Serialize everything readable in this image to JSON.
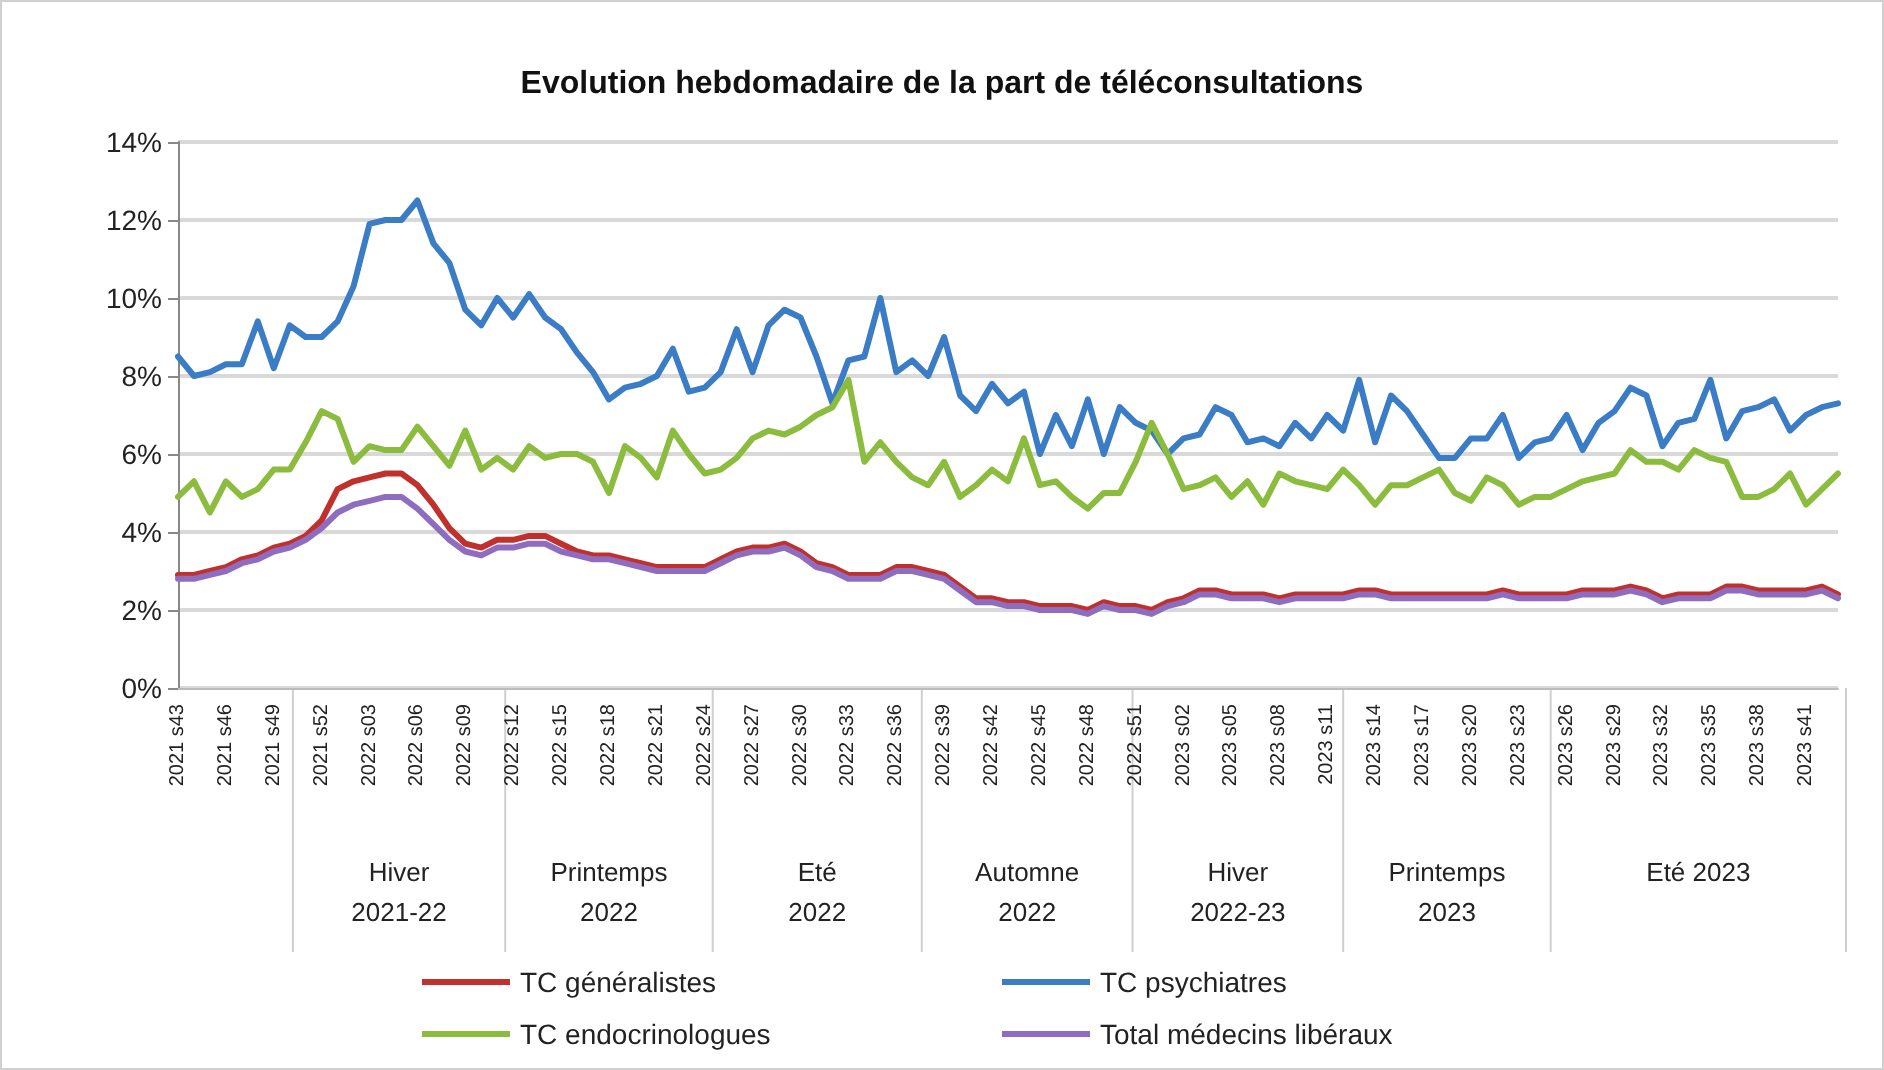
{
  "chart_data": {
    "type": "line",
    "title": "Evolution hebdomadaire de la part de téléconsultations",
    "categories": [
      "2021 s43",
      null,
      null,
      "2021 s46",
      null,
      null,
      "2021 s49",
      null,
      null,
      "2021 s52",
      null,
      null,
      "2022 s03",
      null,
      null,
      "2022 s06",
      null,
      null,
      "2022 s09",
      null,
      null,
      "2022 s12",
      null,
      null,
      "2022 s15",
      null,
      null,
      "2022 s18",
      null,
      null,
      "2022 s21",
      null,
      null,
      "2022 s24",
      null,
      null,
      "2022 s27",
      null,
      null,
      "2022 s30",
      null,
      null,
      "2022 s33",
      null,
      null,
      "2022 s36",
      null,
      null,
      "2022 s39",
      null,
      null,
      "2022 s42",
      null,
      null,
      "2022 s45",
      null,
      null,
      "2022 s48",
      null,
      null,
      "2022 s51",
      null,
      null,
      "2023 s02",
      null,
      null,
      "2023 s05",
      null,
      null,
      "2023 s08",
      null,
      null,
      "2023 s11",
      null,
      null,
      "2023 s14",
      null,
      null,
      "2023 s17",
      null,
      null,
      "2023 s20",
      null,
      null,
      "2023 s23",
      null,
      null,
      "2023 s26",
      null,
      null,
      "2023 s29",
      null,
      null,
      "2023 s32",
      null,
      null,
      "2023 s35",
      null,
      null,
      "2023 s38",
      null,
      null,
      "2023 s41",
      null,
      null
    ],
    "series": [
      {
        "name": "TC généralistes",
        "color": "#c0302c",
        "values": [
          2.9,
          2.9,
          3.0,
          3.1,
          3.3,
          3.4,
          3.6,
          3.7,
          3.9,
          4.3,
          5.1,
          5.3,
          5.4,
          5.5,
          5.5,
          5.2,
          4.7,
          4.1,
          3.7,
          3.6,
          3.8,
          3.8,
          3.9,
          3.9,
          3.7,
          3.5,
          3.4,
          3.4,
          3.3,
          3.2,
          3.1,
          3.1,
          3.1,
          3.1,
          3.3,
          3.5,
          3.6,
          3.6,
          3.7,
          3.5,
          3.2,
          3.1,
          2.9,
          2.9,
          2.9,
          3.1,
          3.1,
          3.0,
          2.9,
          2.6,
          2.3,
          2.3,
          2.2,
          2.2,
          2.1,
          2.1,
          2.1,
          2.0,
          2.2,
          2.1,
          2.1,
          2.0,
          2.2,
          2.3,
          2.5,
          2.5,
          2.4,
          2.4,
          2.4,
          2.3,
          2.4,
          2.4,
          2.4,
          2.4,
          2.5,
          2.5,
          2.4,
          2.4,
          2.4,
          2.4,
          2.4,
          2.4,
          2.4,
          2.5,
          2.4,
          2.4,
          2.4,
          2.4,
          2.5,
          2.5,
          2.5,
          2.6,
          2.5,
          2.3,
          2.4,
          2.4,
          2.4,
          2.6,
          2.6,
          2.5,
          2.5,
          2.5,
          2.5,
          2.6,
          2.4
        ]
      },
      {
        "name": "TC psychiatres",
        "color": "#3a7cc6",
        "values": [
          8.5,
          8.0,
          8.1,
          8.3,
          8.3,
          9.4,
          8.2,
          9.3,
          9.0,
          9.0,
          9.4,
          10.3,
          11.9,
          12.0,
          12.0,
          12.5,
          11.4,
          10.9,
          9.7,
          9.3,
          10.0,
          9.5,
          10.1,
          9.5,
          9.2,
          8.6,
          8.1,
          7.4,
          7.7,
          7.8,
          8.0,
          8.7,
          7.6,
          7.7,
          8.1,
          9.2,
          8.1,
          9.3,
          9.7,
          9.5,
          8.5,
          7.3,
          8.4,
          8.5,
          10.0,
          8.1,
          8.4,
          8.0,
          9.0,
          7.5,
          7.1,
          7.8,
          7.3,
          7.6,
          6.0,
          7.0,
          6.2,
          7.4,
          6.0,
          7.2,
          6.8,
          6.6,
          6.0,
          6.4,
          6.5,
          7.2,
          7.0,
          6.3,
          6.4,
          6.2,
          6.8,
          6.4,
          7.0,
          6.6,
          7.9,
          6.3,
          7.5,
          7.1,
          6.5,
          5.9,
          5.9,
          6.4,
          6.4,
          7.0,
          5.9,
          6.3,
          6.4,
          7.0,
          6.1,
          6.8,
          7.1,
          7.7,
          7.5,
          6.2,
          6.8,
          6.9,
          7.9,
          6.4,
          7.1,
          7.2,
          7.4,
          6.6,
          7.0,
          7.2,
          7.3
        ]
      },
      {
        "name": "TC endocrinologues",
        "color": "#8cbc3e",
        "values": [
          4.9,
          5.3,
          4.5,
          5.3,
          4.9,
          5.1,
          5.6,
          5.6,
          6.3,
          7.1,
          6.9,
          5.8,
          6.2,
          6.1,
          6.1,
          6.7,
          6.2,
          5.7,
          6.6,
          5.6,
          5.9,
          5.6,
          6.2,
          5.9,
          6.0,
          6.0,
          5.8,
          5.0,
          6.2,
          5.9,
          5.4,
          6.6,
          6.0,
          5.5,
          5.6,
          5.9,
          6.4,
          6.6,
          6.5,
          6.7,
          7.0,
          7.2,
          7.9,
          5.8,
          6.3,
          5.8,
          5.4,
          5.2,
          5.8,
          4.9,
          5.2,
          5.6,
          5.3,
          6.4,
          5.2,
          5.3,
          4.9,
          4.6,
          5.0,
          5.0,
          5.8,
          6.8,
          6.0,
          5.1,
          5.2,
          5.4,
          4.9,
          5.3,
          4.7,
          5.5,
          5.3,
          5.2,
          5.1,
          5.6,
          5.2,
          4.7,
          5.2,
          5.2,
          5.4,
          5.6,
          5.0,
          4.8,
          5.4,
          5.2,
          4.7,
          4.9,
          4.9,
          5.1,
          5.3,
          5.4,
          5.5,
          6.1,
          5.8,
          5.8,
          5.6,
          6.1,
          5.9,
          5.8,
          4.9,
          4.9,
          5.1,
          5.5,
          4.7,
          5.1,
          5.5
        ]
      },
      {
        "name": "Total médecins libéraux",
        "color": "#8e6cc0",
        "values": [
          2.8,
          2.8,
          2.9,
          3.0,
          3.2,
          3.3,
          3.5,
          3.6,
          3.8,
          4.1,
          4.5,
          4.7,
          4.8,
          4.9,
          4.9,
          4.6,
          4.2,
          3.8,
          3.5,
          3.4,
          3.6,
          3.6,
          3.7,
          3.7,
          3.5,
          3.4,
          3.3,
          3.3,
          3.2,
          3.1,
          3.0,
          3.0,
          3.0,
          3.0,
          3.2,
          3.4,
          3.5,
          3.5,
          3.6,
          3.4,
          3.1,
          3.0,
          2.8,
          2.8,
          2.8,
          3.0,
          3.0,
          2.9,
          2.8,
          2.5,
          2.2,
          2.2,
          2.1,
          2.1,
          2.0,
          2.0,
          2.0,
          1.9,
          2.1,
          2.0,
          2.0,
          1.9,
          2.1,
          2.2,
          2.4,
          2.4,
          2.3,
          2.3,
          2.3,
          2.2,
          2.3,
          2.3,
          2.3,
          2.3,
          2.4,
          2.4,
          2.3,
          2.3,
          2.3,
          2.3,
          2.3,
          2.3,
          2.3,
          2.4,
          2.3,
          2.3,
          2.3,
          2.3,
          2.4,
          2.4,
          2.4,
          2.5,
          2.4,
          2.2,
          2.3,
          2.3,
          2.3,
          2.5,
          2.5,
          2.4,
          2.4,
          2.4,
          2.4,
          2.5,
          2.3
        ]
      }
    ],
    "ylim": [
      0,
      14
    ],
    "yticks": [
      {
        "value": 0,
        "label": "0%"
      },
      {
        "value": 2,
        "label": "2%"
      },
      {
        "value": 4,
        "label": "4%"
      },
      {
        "value": 6,
        "label": "6%"
      },
      {
        "value": 8,
        "label": "8%"
      },
      {
        "value": 10,
        "label": "10%"
      },
      {
        "value": 12,
        "label": "12%"
      },
      {
        "value": 14,
        "label": "14%"
      }
    ],
    "annotations": [
      "Hiver\n2021-22",
      "Printemps\n2022",
      "Eté\n2022",
      "Automne\n2022",
      "Hiver\n2022-23",
      "Printemps\n2023",
      "Eté 2023"
    ],
    "grid": "y",
    "legend": "bottom",
    "marker": "none",
    "line_style": "solid"
  }
}
